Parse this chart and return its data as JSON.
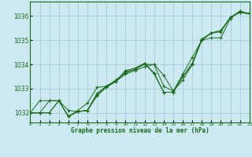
{
  "title": "Graphe pression niveau de la mer (hPa)",
  "x_labels": [
    "0",
    "1",
    "2",
    "3",
    "4",
    "5",
    "6",
    "7",
    "8",
    "9",
    "10",
    "11",
    "12",
    "13",
    "14",
    "15",
    "16",
    "17",
    "18",
    "19",
    "20",
    "21",
    "22",
    "23"
  ],
  "xlim": [
    0,
    23
  ],
  "ylim": [
    1031.6,
    1036.6
  ],
  "yticks": [
    1032,
    1033,
    1034,
    1035,
    1036
  ],
  "background_color": "#cce8f0",
  "grid_color": "#aacfdd",
  "line_color": "#1a6b1a",
  "series": [
    [
      1032.0,
      null,
      null,
      1032.5,
      1031.85,
      1032.05,
      null,
      null,
      null,
      null,
      null,
      null,
      null,
      null,
      null,
      null,
      null,
      null,
      null,
      null,
      null,
      1035.95,
      1036.2,
      1036.1
    ],
    [
      1032.0,
      null,
      1032.5,
      null,
      1032.1,
      1032.05,
      1032.1,
      1032.7,
      1033.05,
      1033.3,
      1033.6,
      1033.75,
      1033.9,
      1034.0,
      1033.55,
      1032.9,
      1033.35,
      1034.0,
      1035.0,
      1035.3,
      1035.35,
      1035.95,
      1036.05,
      1036.1
    ],
    [
      1032.0,
      null,
      null,
      null,
      1031.85,
      1032.05,
      1032.1,
      1032.8,
      1033.1,
      1033.35,
      1033.65,
      1033.8,
      1034.0,
      1034.0,
      1033.1,
      1032.9,
      1033.6,
      1034.3,
      1035.0,
      1035.1,
      1035.1,
      1035.9,
      1036.2,
      1036.1
    ],
    [
      1032.0,
      1032.5,
      null,
      null,
      1031.85,
      1032.1,
      1032.4,
      1033.05,
      1033.1,
      1033.3,
      1033.75,
      1033.85,
      1034.05,
      1033.6,
      1032.85,
      1032.85,
      1033.5,
      1034.0,
      1035.05,
      1035.3,
      1035.4,
      1035.95,
      1036.15,
      1036.1
    ]
  ],
  "smooth_series": [
    [
      1032.0,
      1032.0,
      1032.0,
      1032.5,
      1031.85,
      1032.05,
      1032.1,
      1032.7,
      1033.05,
      1033.3,
      1033.6,
      1033.75,
      1033.9,
      1034.0,
      1033.55,
      1032.9,
      1033.35,
      1034.0,
      1035.0,
      1035.3,
      1035.35,
      1035.95,
      1036.2,
      1036.1
    ],
    [
      1032.0,
      1032.0,
      1032.5,
      1032.5,
      1032.1,
      1032.05,
      1032.1,
      1032.8,
      1033.1,
      1033.35,
      1033.65,
      1033.8,
      1034.0,
      1034.0,
      1033.1,
      1032.9,
      1033.6,
      1034.3,
      1035.0,
      1035.1,
      1035.1,
      1035.9,
      1036.2,
      1036.1
    ],
    [
      1032.0,
      1032.0,
      1032.0,
      1032.5,
      1031.85,
      1032.05,
      1032.1,
      1032.75,
      1033.1,
      1033.35,
      1033.7,
      1033.8,
      1034.05,
      1033.65,
      1032.85,
      1032.85,
      1033.5,
      1034.05,
      1035.05,
      1035.3,
      1035.4,
      1035.95,
      1036.15,
      1036.1
    ],
    [
      1032.0,
      1032.5,
      1032.5,
      1032.5,
      1031.85,
      1032.1,
      1032.4,
      1033.05,
      1033.1,
      1033.3,
      1033.75,
      1033.85,
      1034.05,
      1033.6,
      1032.85,
      1032.85,
      1033.5,
      1034.0,
      1035.05,
      1035.3,
      1035.4,
      1035.95,
      1036.15,
      1036.1
    ]
  ]
}
